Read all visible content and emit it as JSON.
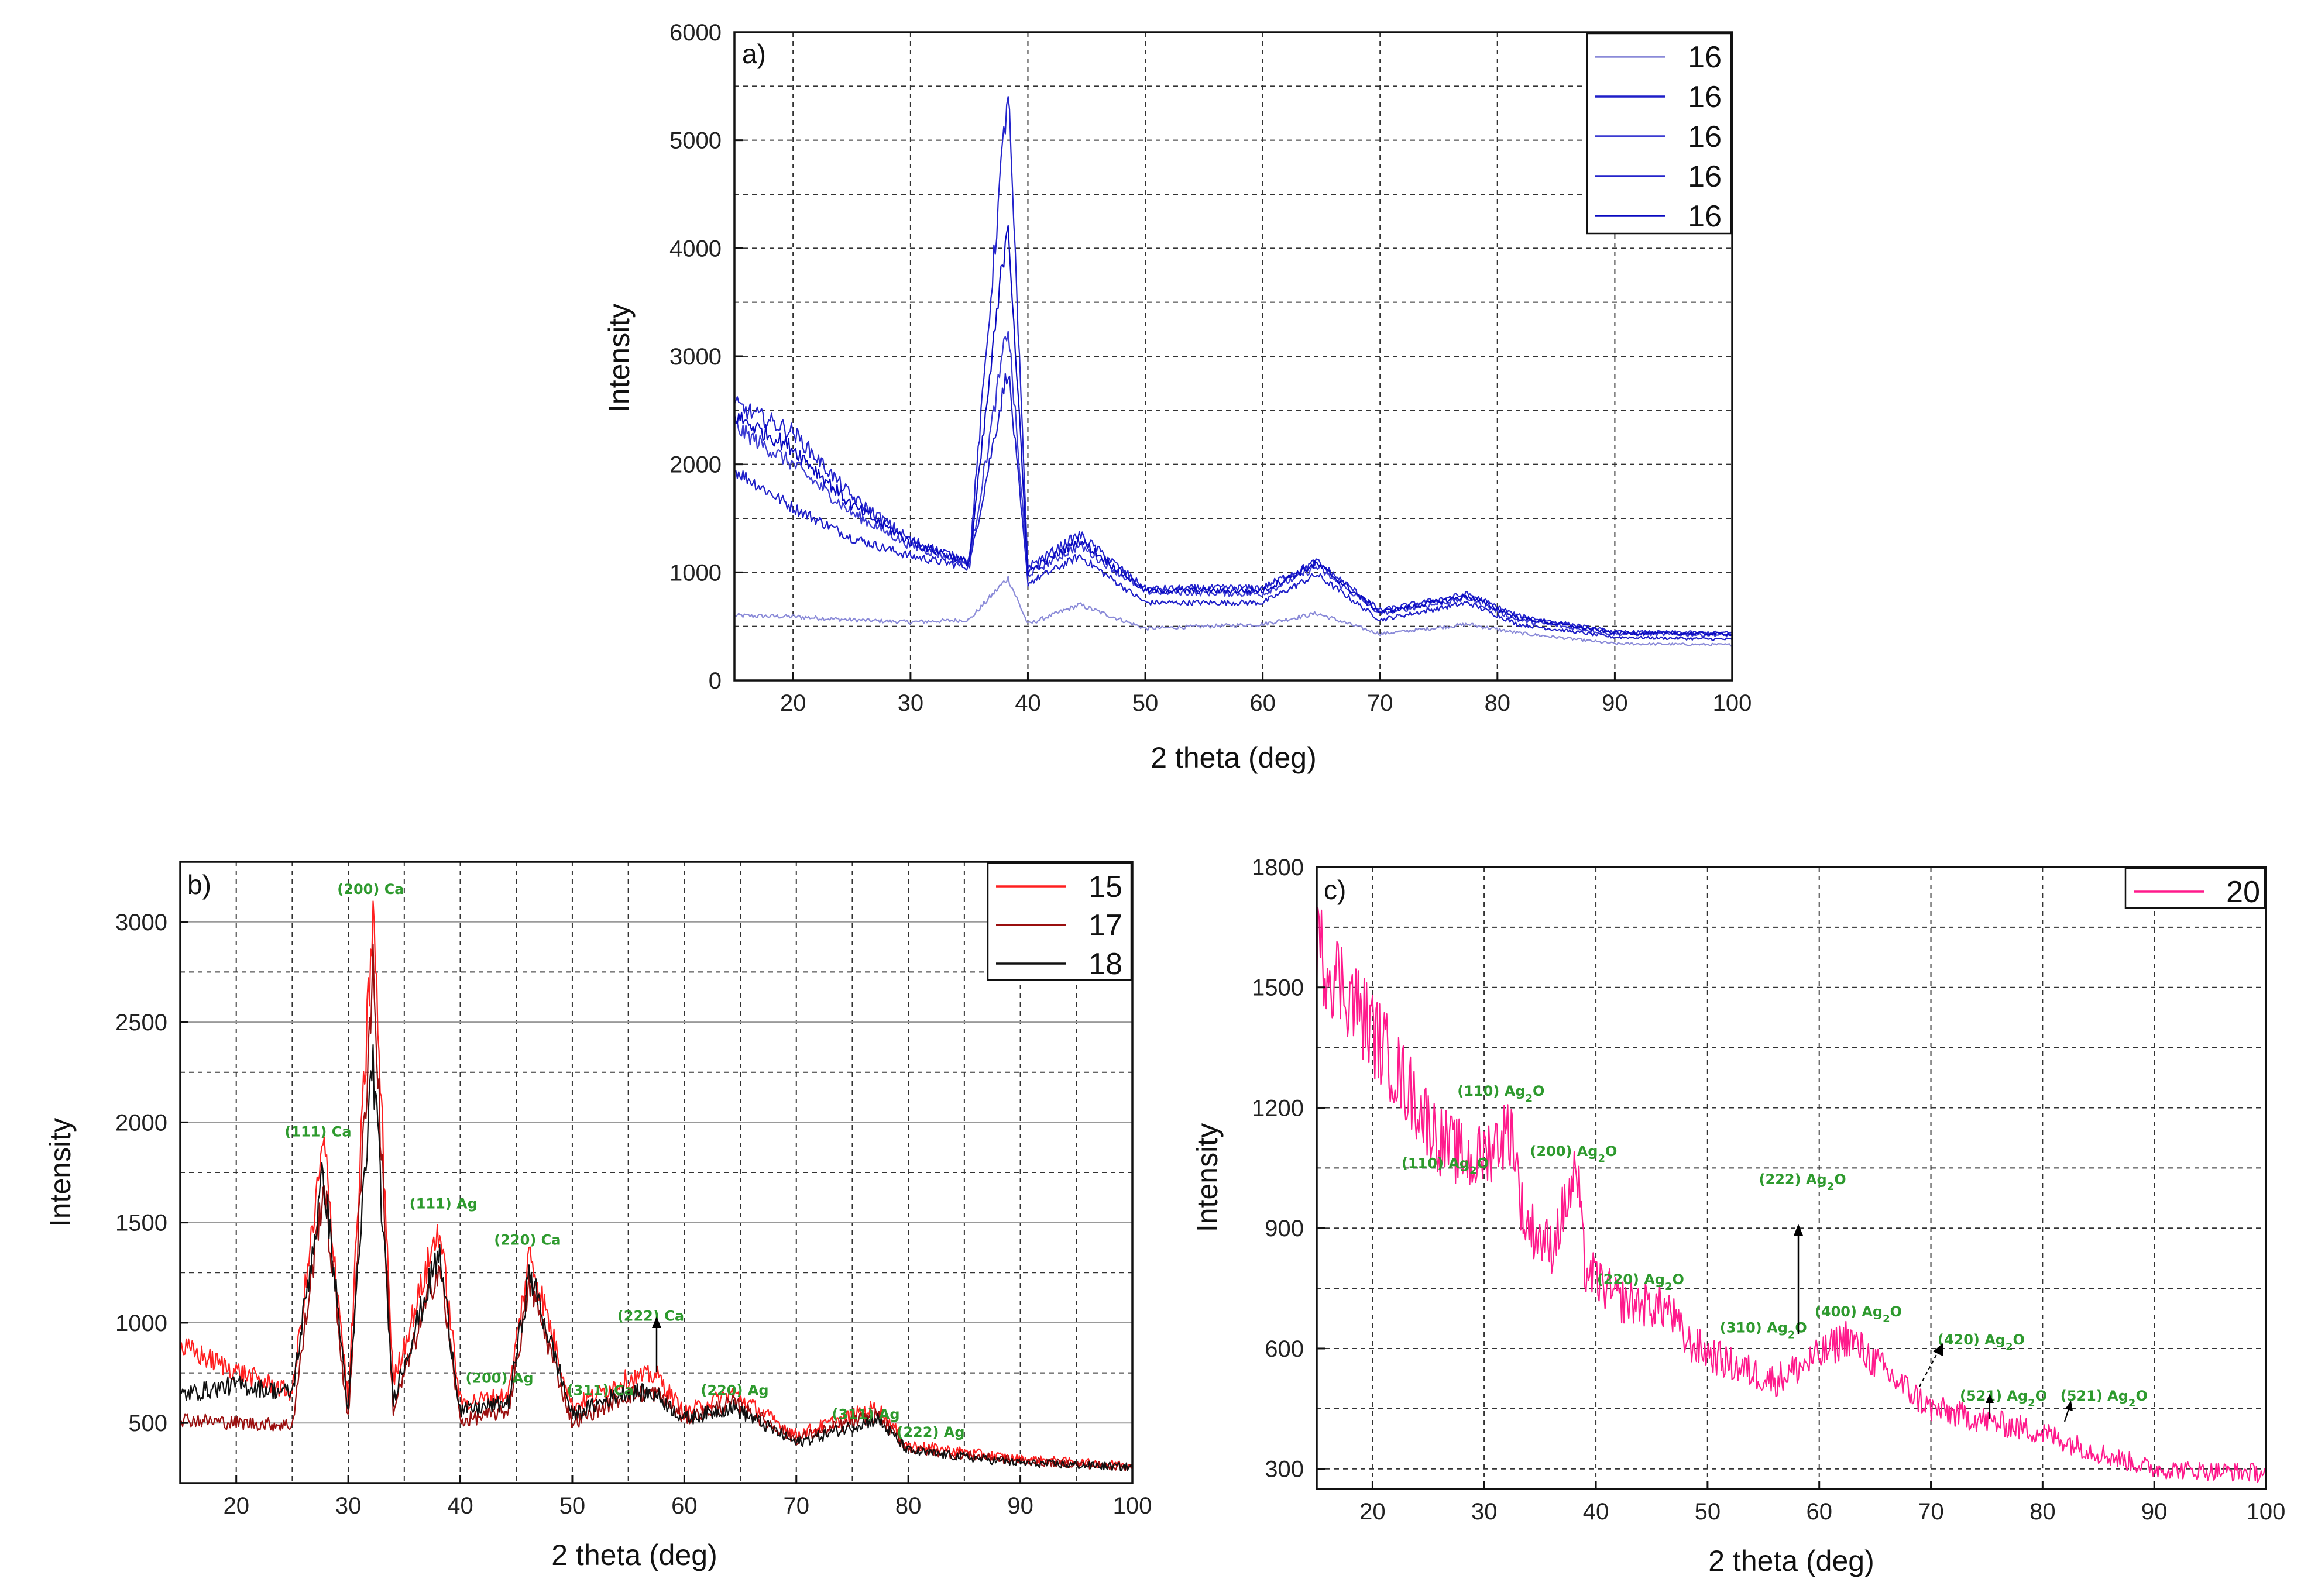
{
  "chart_data": [
    {
      "id": "a",
      "type": "line",
      "panel_label": "a)",
      "xlabel": "2 theta (deg)",
      "ylabel": "Intensity",
      "xlim": [
        15,
        100
      ],
      "ylim": [
        0,
        6000
      ],
      "xticks": [
        20,
        30,
        40,
        50,
        60,
        70,
        80,
        90,
        100
      ],
      "yticks": [
        0,
        1000,
        2000,
        3000,
        4000,
        5000,
        6000
      ],
      "legend_position": "top-right",
      "series": [
        {
          "name": "16",
          "color": "#8a8ad8",
          "key_x": [
            15,
            20,
            25,
            30,
            35,
            38.3,
            40,
            44.4,
            50,
            60,
            64.6,
            70,
            77.5,
            81.7,
            90,
            100
          ],
          "key_y": [
            600,
            590,
            560,
            540,
            560,
            950,
            520,
            700,
            480,
            520,
            620,
            430,
            520,
            440,
            340,
            330
          ]
        },
        {
          "name": "16",
          "color": "#1f1fc8",
          "key_x": [
            15,
            20,
            25,
            30,
            35,
            38.3,
            40,
            44.4,
            50,
            60,
            64.6,
            70,
            77.5,
            81.7,
            90,
            100
          ],
          "key_y": [
            1950,
            1600,
            1320,
            1150,
            1050,
            2900,
            900,
            1150,
            720,
            720,
            980,
            560,
            720,
            520,
            400,
            380
          ]
        },
        {
          "name": "16",
          "color": "#3b3bd2",
          "key_x": [
            15,
            20,
            25,
            30,
            35,
            38.3,
            40,
            44.4,
            50,
            60,
            64.6,
            70,
            77.5,
            81.7,
            90,
            100
          ],
          "key_y": [
            2350,
            2000,
            1550,
            1250,
            1080,
            3300,
            980,
            1250,
            820,
            800,
            1050,
            620,
            760,
            560,
            430,
            420
          ]
        },
        {
          "name": "16",
          "color": "#2424cc",
          "key_x": [
            15,
            20,
            25,
            30,
            35,
            38.3,
            40,
            44.4,
            50,
            60,
            64.6,
            70,
            77.5,
            81.7,
            90,
            100
          ],
          "key_y": [
            2550,
            2300,
            1700,
            1300,
            1100,
            5500,
            1050,
            1350,
            850,
            860,
            1100,
            650,
            800,
            600,
            450,
            440
          ]
        },
        {
          "name": "16",
          "color": "#0a0ac0",
          "key_x": [
            15,
            20,
            25,
            30,
            35,
            38.3,
            40,
            44.4,
            50,
            60,
            64.6,
            70,
            77.5,
            81.7,
            90,
            100
          ],
          "key_y": [
            2450,
            2150,
            1620,
            1280,
            1090,
            4300,
            1000,
            1300,
            830,
            830,
            1080,
            630,
            780,
            580,
            440,
            430
          ]
        }
      ]
    },
    {
      "id": "b",
      "type": "line",
      "panel_label": "b)",
      "xlabel": "2 theta (deg)",
      "ylabel": "Intensity",
      "xlim": [
        15,
        100
      ],
      "ylim": [
        200,
        3300
      ],
      "xticks": [
        20,
        30,
        40,
        50,
        60,
        70,
        80,
        90,
        100
      ],
      "yticks": [
        500,
        1000,
        1500,
        2000,
        2500,
        3000
      ],
      "legend_position": "top-right",
      "series": [
        {
          "name": "15",
          "color": "#ff2020",
          "key_x": [
            15,
            20,
            25,
            27.8,
            30,
            32.2,
            34,
            38.1,
            40,
            44.3,
            46.2,
            50,
            54.9,
            57.5,
            60,
            64.3,
            70,
            77.2,
            80,
            90,
            100
          ],
          "key_y": [
            880,
            760,
            650,
            1900,
            600,
            3050,
            700,
            1480,
            600,
            640,
            1350,
            580,
            720,
            740,
            550,
            650,
            440,
            580,
            390,
            320,
            290
          ]
        },
        {
          "name": "17",
          "color": "#9a0f0f",
          "key_x": [
            15,
            20,
            25,
            27.8,
            30,
            32.2,
            34,
            38.1,
            40,
            44.3,
            46.2,
            50,
            54.9,
            57.5,
            60,
            64.3,
            70,
            77.2,
            80,
            90,
            100
          ],
          "key_y": [
            520,
            500,
            490,
            1700,
            500,
            2800,
            560,
            1300,
            510,
            560,
            1200,
            500,
            640,
            650,
            520,
            600,
            420,
            540,
            370,
            310,
            280
          ]
        },
        {
          "name": "18",
          "color": "#111111",
          "key_x": [
            15,
            20,
            25,
            27.8,
            30,
            32.2,
            34,
            38.1,
            40,
            44.3,
            46.2,
            50,
            54.9,
            57.5,
            60,
            64.3,
            70,
            77.2,
            80,
            90,
            100
          ],
          "key_y": [
            640,
            690,
            650,
            1750,
            560,
            2330,
            620,
            1350,
            560,
            600,
            1250,
            540,
            660,
            640,
            520,
            580,
            400,
            520,
            360,
            300,
            280
          ]
        }
      ],
      "annotations": [
        {
          "text": "(111) Ca",
          "x": 27.3,
          "y": 1930
        },
        {
          "text": "(200) Ca",
          "x": 32.0,
          "y": 3140
        },
        {
          "text": "(111) Ag",
          "x": 38.5,
          "y": 1570
        },
        {
          "text": "(220) Ca",
          "x": 46.0,
          "y": 1390
        },
        {
          "text": "(200) Ag",
          "x": 43.5,
          "y": 700
        },
        {
          "text": "(311) Ca",
          "x": 52.5,
          "y": 640
        },
        {
          "text": "(222) Ca",
          "x": 57.0,
          "y": 1010
        },
        {
          "text": "(220) Ag",
          "x": 64.5,
          "y": 640
        },
        {
          "text": "(311) Ag",
          "x": 76.2,
          "y": 520
        },
        {
          "text": "(222) Ag",
          "x": 82.0,
          "y": 430
        }
      ]
    },
    {
      "id": "c",
      "type": "line",
      "panel_label": "c)",
      "xlabel": "2 theta (deg)",
      "ylabel": "Intensity",
      "xlim": [
        15,
        100
      ],
      "ylim": [
        250,
        1800
      ],
      "xticks": [
        20,
        30,
        40,
        50,
        60,
        70,
        80,
        90,
        100
      ],
      "yticks": [
        300,
        600,
        900,
        1200,
        1500,
        1800
      ],
      "legend_position": "top-right",
      "series": [
        {
          "name": "20",
          "color": "#ff1a8c",
          "key_x": [
            15,
            18,
            22,
            26,
            28.1,
            29,
            32.5,
            33.5,
            36,
            38.3,
            39,
            42,
            46.5,
            48,
            52,
            56,
            60,
            62.5,
            66,
            70,
            75,
            80,
            85,
            90,
            100
          ],
          "key_y": [
            1600,
            1480,
            1300,
            1120,
            1080,
            1060,
            1150,
            920,
            850,
            1040,
            800,
            720,
            700,
            620,
            560,
            520,
            580,
            630,
            540,
            450,
            420,
            390,
            340,
            300,
            290
          ]
        }
      ],
      "annotations": [
        {
          "main": "(110) Ag",
          "sub": "2",
          "tail": "O",
          "x": 26.5,
          "y": 1050
        },
        {
          "main": "(110) Ag",
          "sub": "2",
          "tail": "O",
          "x": 31.5,
          "y": 1230
        },
        {
          "main": "(200) Ag",
          "sub": "2",
          "tail": "O",
          "x": 38.0,
          "y": 1080
        },
        {
          "main": "(220) Ag",
          "sub": "2",
          "tail": "O",
          "x": 44.0,
          "y": 760
        },
        {
          "main": "(222) Ag",
          "sub": "2",
          "tail": "O",
          "x": 58.5,
          "y": 1010
        },
        {
          "main": "(310) Ag",
          "sub": "2",
          "tail": "O",
          "x": 55.0,
          "y": 640
        },
        {
          "main": "(400) Ag",
          "sub": "2",
          "tail": "O",
          "x": 63.5,
          "y": 680
        },
        {
          "main": "(420) Ag",
          "sub": "2",
          "tail": "O",
          "x": 74.5,
          "y": 610
        },
        {
          "main": "(521) Ag",
          "sub": "2",
          "tail": "O",
          "x": 76.5,
          "y": 470
        },
        {
          "main": "(521) Ag",
          "sub": "2",
          "tail": "O",
          "x": 85.5,
          "y": 470
        }
      ]
    }
  ]
}
